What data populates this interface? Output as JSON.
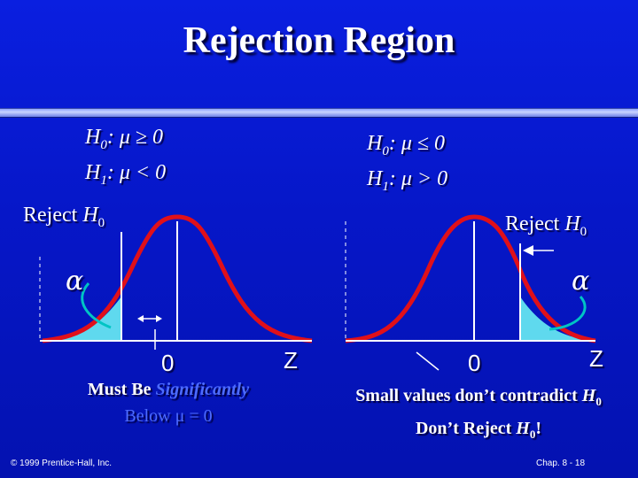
{
  "title": "Rejection Region",
  "left": {
    "h0_prefix": "H",
    "h0_sub": "0",
    "h0_rel": ":  μ ≥ 0",
    "h1_prefix": "H",
    "h1_sub": "1",
    "h1_rel": ":  μ < 0",
    "reject_prefix": "Reject ",
    "reject_h": "H",
    "reject_sub": "0",
    "alpha": "α",
    "zero": "0",
    "z": "Z",
    "caption_a": "Must Be ",
    "caption_b": "Significantly",
    "caption_c": "Below ",
    "caption_d": "μ = 0"
  },
  "right": {
    "h0_prefix": "H",
    "h0_sub": "0",
    "h0_rel": ":  μ ≤ 0",
    "h1_prefix": "H",
    "h1_sub": "1",
    "h1_rel": ":  μ > 0",
    "reject_prefix": "Reject ",
    "reject_h": "H",
    "reject_sub": "0",
    "alpha": "α",
    "zero": "0",
    "z": "Z",
    "caption_a": "Small values don’t contradict ",
    "caption_b": "H",
    "caption_b_sub": "0",
    "caption_c": "Don’t Reject ",
    "caption_d": "H",
    "caption_d_sub": "0",
    "caption_e": "!"
  },
  "footer_left": "© 1999 Prentice-Hall, Inc.",
  "footer_right": "Chap. 8 - 18",
  "colors": {
    "background": "#0617c8",
    "curve": "#e0101a",
    "tail_fill": "#5fd9ee",
    "highlight": "#4d6cff"
  }
}
